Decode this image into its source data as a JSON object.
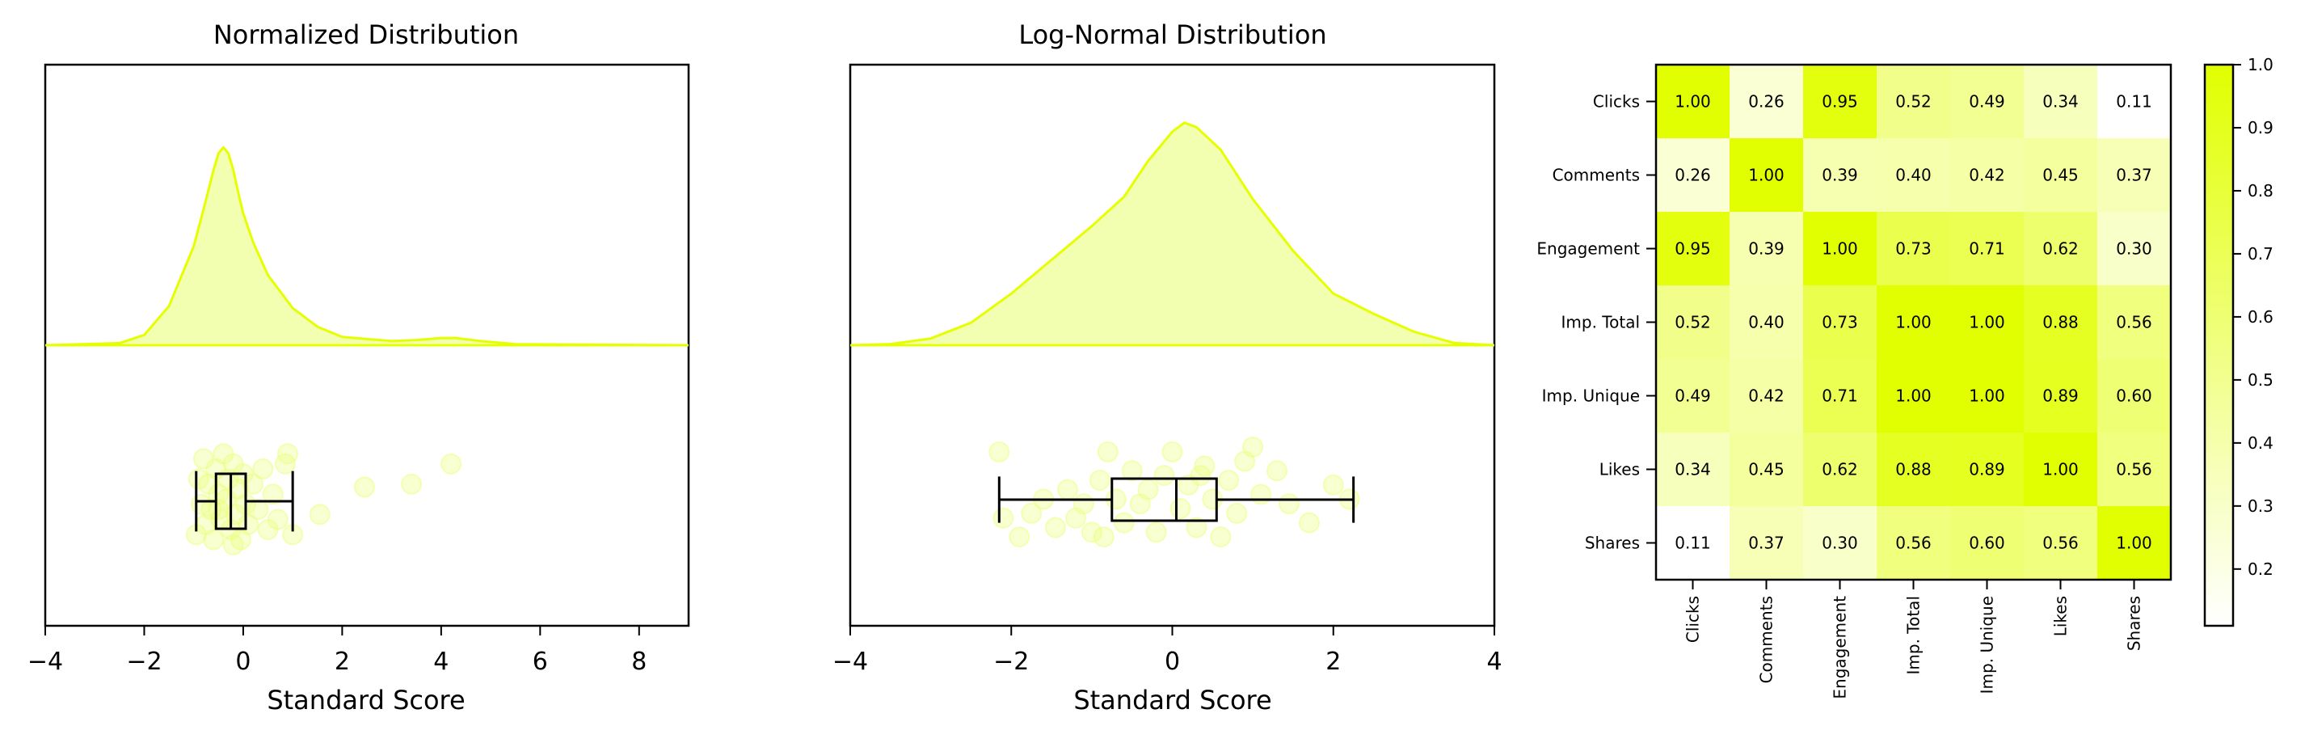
{
  "colors": {
    "curve": "#e6ff00",
    "fill": "#f2ffb0",
    "point": "#eaff7a",
    "box": "#000000",
    "heat_low": "#ffffff",
    "heat_high": "#e1ff00"
  },
  "chart_data": [
    {
      "type": "area",
      "title": "Normalized Distribution",
      "xlabel": "Standard Score",
      "xlim": [
        -4,
        9
      ],
      "xticks": [
        "−4",
        "−2",
        "0",
        "2",
        "4",
        "6",
        "8"
      ],
      "tick_values": [
        -4,
        -2,
        0,
        2,
        4,
        6,
        8
      ],
      "density": {
        "x": [
          -4,
          -2.5,
          -2,
          -1.5,
          -1.0,
          -0.8,
          -0.6,
          -0.5,
          -0.4,
          -0.3,
          -0.2,
          -0.1,
          0,
          0.2,
          0.5,
          1.0,
          1.5,
          2.0,
          3.0,
          3.5,
          4.0,
          4.3,
          4.8,
          5.5,
          9
        ],
        "y": [
          0,
          0.01,
          0.05,
          0.19,
          0.48,
          0.66,
          0.85,
          0.93,
          0.96,
          0.93,
          0.85,
          0.74,
          0.64,
          0.5,
          0.34,
          0.18,
          0.09,
          0.04,
          0.02,
          0.025,
          0.035,
          0.035,
          0.02,
          0.005,
          0
        ]
      },
      "boxplot": {
        "whisker_low": -0.95,
        "q1": -0.55,
        "median": -0.25,
        "q3": 0.05,
        "whisker_high": 1.0
      },
      "points": {
        "x": [
          -0.95,
          -0.9,
          -0.85,
          -0.8,
          -0.75,
          -0.7,
          -0.65,
          -0.6,
          -0.55,
          -0.5,
          -0.45,
          -0.4,
          -0.35,
          -0.3,
          -0.25,
          -0.2,
          -0.15,
          -0.1,
          -0.05,
          0.0,
          0.05,
          0.1,
          0.2,
          0.3,
          0.4,
          0.5,
          0.6,
          0.7,
          0.85,
          1.0,
          1.55,
          2.45,
          3.4,
          4.2,
          0.9,
          -0.5,
          -0.2
        ],
        "jitter": [
          0.85,
          0.3,
          0.55,
          0.1,
          0.75,
          0.35,
          0.6,
          0.9,
          0.2,
          0.45,
          0.7,
          0.05,
          0.5,
          0.3,
          0.8,
          0.15,
          0.65,
          0.4,
          0.9,
          0.25,
          0.55,
          0.75,
          0.35,
          0.6,
          0.2,
          0.8,
          0.45,
          0.7,
          0.15,
          0.85,
          0.65,
          0.38,
          0.35,
          0.15,
          0.05,
          0.6,
          0.95
        ]
      }
    },
    {
      "type": "area",
      "title": "Log-Normal Distribution",
      "xlabel": "Standard Score",
      "xlim": [
        -4,
        4
      ],
      "xticks": [
        "−4",
        "−2",
        "0",
        "2",
        "4"
      ],
      "tick_values": [
        -4,
        -2,
        0,
        2,
        4
      ],
      "density": {
        "x": [
          -4,
          -3.5,
          -3.0,
          -2.5,
          -2.0,
          -1.5,
          -1.0,
          -0.6,
          -0.3,
          0,
          0.15,
          0.3,
          0.6,
          1.0,
          1.5,
          2.0,
          2.5,
          3.0,
          3.5,
          4
        ],
        "y": [
          0,
          0.005,
          0.03,
          0.1,
          0.23,
          0.38,
          0.53,
          0.66,
          0.82,
          0.95,
          0.99,
          0.97,
          0.87,
          0.65,
          0.42,
          0.23,
          0.14,
          0.06,
          0.01,
          0
        ],
        "stroke_ends": [
          -4.0,
          4.0
        ]
      },
      "boxplot": {
        "whisker_low": -2.15,
        "q1": -0.75,
        "median": 0.05,
        "q3": 0.55,
        "whisker_high": 2.25
      },
      "points": {
        "x": [
          -2.15,
          -2.1,
          -1.9,
          -1.75,
          -1.6,
          -1.45,
          -1.3,
          -1.2,
          -1.1,
          -1.0,
          -0.9,
          -0.8,
          -0.7,
          -0.6,
          -0.5,
          -0.4,
          -0.3,
          -0.2,
          -0.1,
          0.0,
          0.1,
          0.2,
          0.3,
          0.4,
          0.5,
          0.6,
          0.7,
          0.8,
          0.9,
          1.0,
          1.1,
          1.3,
          1.45,
          1.7,
          2.0,
          2.2,
          -0.85,
          0.35
        ],
        "jitter": [
          0.05,
          0.75,
          0.95,
          0.7,
          0.55,
          0.85,
          0.45,
          0.75,
          0.6,
          0.9,
          0.35,
          0.05,
          0.55,
          0.8,
          0.25,
          0.6,
          0.45,
          0.9,
          0.3,
          0.05,
          0.65,
          0.4,
          0.85,
          0.2,
          0.55,
          0.95,
          0.35,
          0.7,
          0.15,
          0.0,
          0.5,
          0.25,
          0.6,
          0.8,
          0.4,
          0.55,
          0.95,
          0.3
        ]
      }
    },
    {
      "type": "heatmap",
      "rows": [
        "Clicks",
        "Comments",
        "Engagement",
        "Imp. Total",
        "Imp. Unique",
        "Likes",
        "Shares"
      ],
      "columns": [
        "Clicks",
        "Comments",
        "Engagement",
        "Imp. Total",
        "Imp. Unique",
        "Likes",
        "Shares"
      ],
      "values": [
        [
          1.0,
          0.26,
          0.95,
          0.52,
          0.49,
          0.34,
          0.11
        ],
        [
          0.26,
          1.0,
          0.39,
          0.4,
          0.42,
          0.45,
          0.37
        ],
        [
          0.95,
          0.39,
          1.0,
          0.73,
          0.71,
          0.62,
          0.3
        ],
        [
          0.52,
          0.4,
          0.73,
          1.0,
          1.0,
          0.88,
          0.56
        ],
        [
          0.49,
          0.42,
          0.71,
          1.0,
          1.0,
          0.89,
          0.6
        ],
        [
          0.34,
          0.45,
          0.62,
          0.88,
          0.89,
          1.0,
          0.56
        ],
        [
          0.11,
          0.37,
          0.3,
          0.56,
          0.6,
          0.56,
          1.0
        ]
      ],
      "labels": [
        [
          "1.00",
          "0.26",
          "0.95",
          "0.52",
          "0.49",
          "0.34",
          "0.11"
        ],
        [
          "0.26",
          "1.00",
          "0.39",
          "0.40",
          "0.42",
          "0.45",
          "0.37"
        ],
        [
          "0.95",
          "0.39",
          "1.00",
          "0.73",
          "0.71",
          "0.62",
          "0.30"
        ],
        [
          "0.52",
          "0.40",
          "0.73",
          "1.00",
          "1.00",
          "0.88",
          "0.56"
        ],
        [
          "0.49",
          "0.42",
          "0.71",
          "1.00",
          "1.00",
          "0.89",
          "0.60"
        ],
        [
          "0.34",
          "0.45",
          "0.62",
          "0.88",
          "0.89",
          "1.00",
          "0.56"
        ],
        [
          "0.11",
          "0.37",
          "0.30",
          "0.56",
          "0.60",
          "0.56",
          "1.00"
        ]
      ],
      "colorbar": {
        "range": [
          0.11,
          1.0
        ],
        "ticks": [
          "0.2",
          "0.3",
          "0.4",
          "0.5",
          "0.6",
          "0.7",
          "0.8",
          "0.9",
          "1.0"
        ],
        "tick_values": [
          0.2,
          0.3,
          0.4,
          0.5,
          0.6,
          0.7,
          0.8,
          0.9,
          1.0
        ]
      }
    }
  ]
}
